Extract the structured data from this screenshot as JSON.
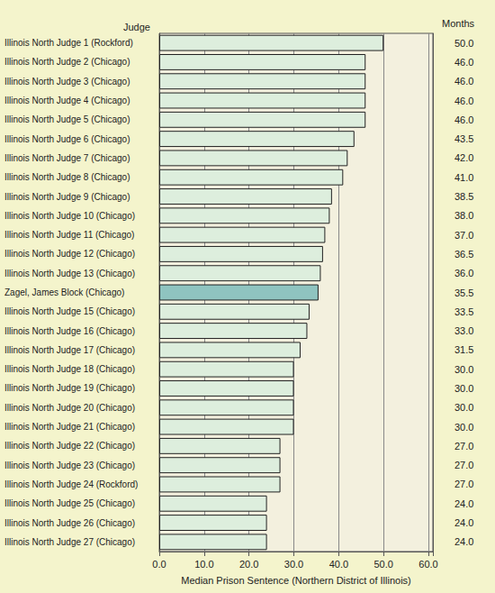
{
  "chart_data": {
    "type": "bar",
    "orientation": "horizontal",
    "ylabel": "Judge",
    "xlabel": "Median Prison Sentence (Northern District of Illinois)",
    "annotations": [
      "Months"
    ],
    "categories": [
      "Illinois North Judge 1 (Rockford)",
      "Illinois North Judge 2 (Chicago)",
      "Illinois North Judge 3 (Chicago)",
      "Illinois North Judge 4 (Chicago)",
      "Illinois North Judge 5 (Chicago)",
      "Illinois North Judge 6 (Chicago)",
      "Illinois North Judge 7 (Chicago)",
      "Illinois North Judge 8 (Chicago)",
      "Illinois North Judge 9 (Chicago)",
      "Illinois North Judge 10 (Chicago)",
      "Illinois North Judge 11 (Chicago)",
      "Illinois North Judge 12 (Chicago)",
      "Illinois North Judge 13 (Chicago)",
      "Zagel, James Block (Chicago)",
      "Illinois North Judge 15 (Chicago)",
      "Illinois North Judge 16 (Chicago)",
      "Illinois North Judge 17 (Chicago)",
      "Illinois North Judge 18 (Chicago)",
      "Illinois North Judge 19 (Chicago)",
      "Illinois North Judge 20 (Chicago)",
      "Illinois North Judge 21 (Chicago)",
      "Illinois North Judge 22 (Chicago)",
      "Illinois North Judge 23 (Chicago)",
      "Illinois North Judge 24 (Rockford)",
      "Illinois North Judge 25 (Chicago)",
      "Illinois North Judge 26 (Chicago)",
      "Illinois North Judge 27 (Chicago)"
    ],
    "values": [
      50,
      46,
      46,
      46,
      46,
      43.5,
      42,
      41,
      38.5,
      38,
      37,
      36.5,
      36,
      35.5,
      33.5,
      33,
      31.5,
      30,
      30,
      30,
      30,
      27,
      27,
      27,
      24,
      24,
      24
    ],
    "value_labels": [
      "50.0",
      "46.0",
      "46.0",
      "46.0",
      "46.0",
      "43.5",
      "42.0",
      "41.0",
      "38.5",
      "38.0",
      "37.0",
      "36.5",
      "36.0",
      "35.5",
      "33.5",
      "33.0",
      "31.5",
      "30.0",
      "30.0",
      "30.0",
      "30.0",
      "27.0",
      "27.0",
      "27.0",
      "24.0",
      "24.0",
      "24.0"
    ],
    "data_labels": true,
    "colors": [
      "#ddeedd",
      "#ddeedd",
      "#ddeedd",
      "#ddeedd",
      "#ddeedd",
      "#ddeedd",
      "#ddeedd",
      "#ddeedd",
      "#ddeedd",
      "#ddeedd",
      "#ddeedd",
      "#ddeedd",
      "#ddeedd",
      "#8fc4c0",
      "#ddeedd",
      "#ddeedd",
      "#ddeedd",
      "#ddeedd",
      "#ddeedd",
      "#ddeedd",
      "#ddeedd",
      "#ddeedd",
      "#ddeedd",
      "#ddeedd",
      "#ddeedd",
      "#ddeedd",
      "#ddeedd"
    ],
    "xlim": [
      0,
      61
    ],
    "xticks": [
      {
        "value": 0,
        "label": "0.0"
      },
      {
        "value": 10,
        "label": "10.0"
      },
      {
        "value": 20,
        "label": "20.0"
      },
      {
        "value": 30,
        "label": "30.0"
      },
      {
        "value": 40,
        "label": "40.0"
      },
      {
        "value": 50,
        "label": "50.0"
      },
      {
        "value": 60,
        "label": "60.0"
      }
    ],
    "grid": true
  }
}
